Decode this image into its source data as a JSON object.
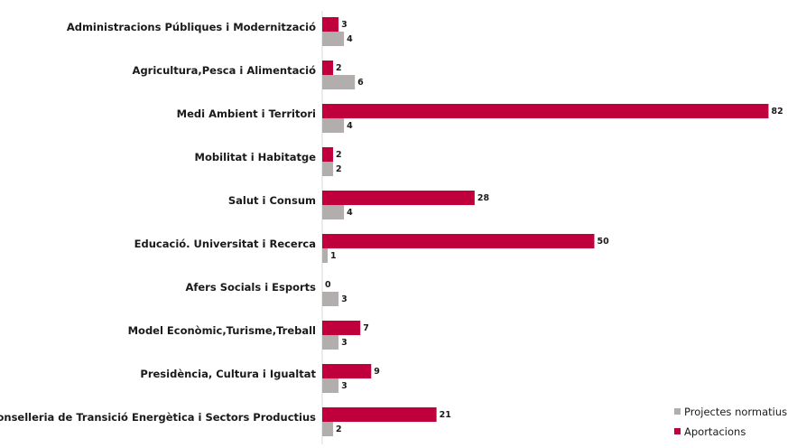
{
  "chart_data": {
    "type": "bar",
    "orientation": "horizontal",
    "categories": [
      "Administracions Públiques  i Modernització",
      "Agricultura,Pesca i Alimentació",
      "Medi Ambient i Territori",
      "Mobilitat i Habitatge",
      "Salut i Consum",
      "Educació. Universitat i Recerca",
      "Afers Socials i Esports",
      "Model Econòmic,Turisme,Treball",
      "Presidència, Cultura i Igualtat",
      "Conselleria de Transició Energètica i Sectors Productius"
    ],
    "series": [
      {
        "name": "Aportacions",
        "color": "#c0003c",
        "values": [
          3,
          2,
          82,
          2,
          28,
          50,
          0,
          7,
          9,
          21
        ]
      },
      {
        "name": "Projectes normatius",
        "color": "#b3aeae",
        "values": [
          4,
          6,
          4,
          2,
          4,
          1,
          3,
          3,
          3,
          2
        ]
      }
    ],
    "legend_position": "bottom-right",
    "grid": false
  }
}
